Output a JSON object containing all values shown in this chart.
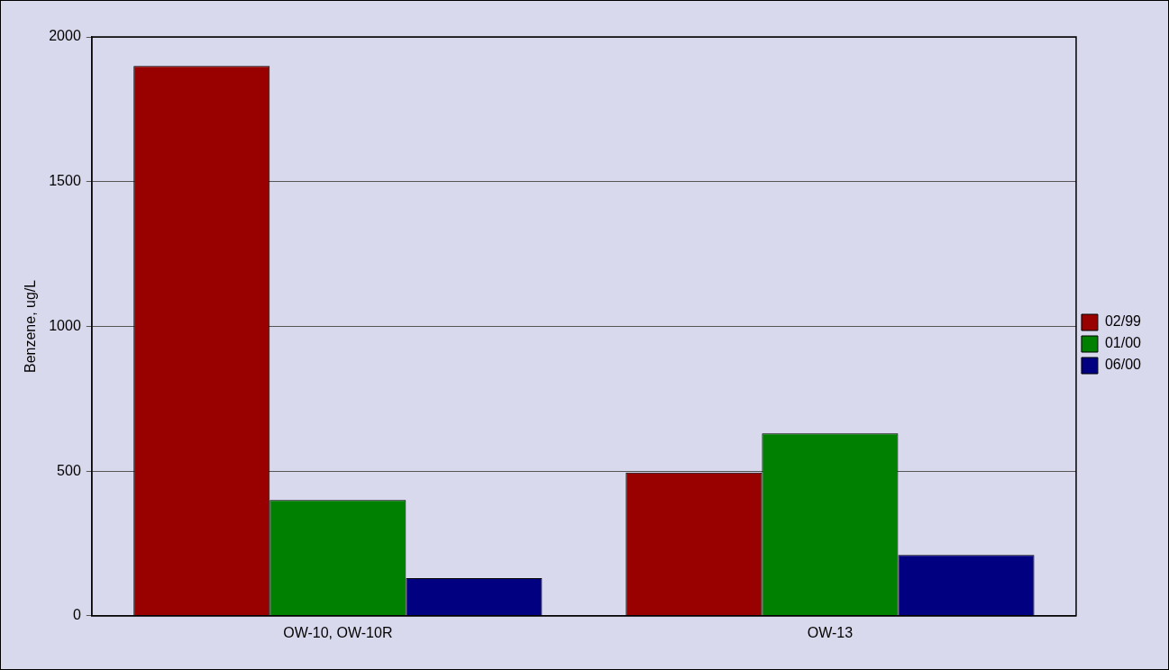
{
  "chart_data": {
    "type": "bar",
    "ylabel": "Benzene, ug/L",
    "categories": [
      "OW-10, OW-10R",
      "OW-13"
    ],
    "series": [
      {
        "name": "02/99",
        "color": "#990000",
        "values": [
          1900,
          495
        ]
      },
      {
        "name": "01/00",
        "color": "#008000",
        "values": [
          400,
          630
        ]
      },
      {
        "name": "06/00",
        "color": "#000080",
        "values": [
          130,
          210
        ]
      }
    ],
    "ylim": [
      0,
      2000
    ],
    "yticks": [
      0,
      500,
      1000,
      1500,
      2000
    ],
    "grid": "y",
    "legend": "right"
  }
}
